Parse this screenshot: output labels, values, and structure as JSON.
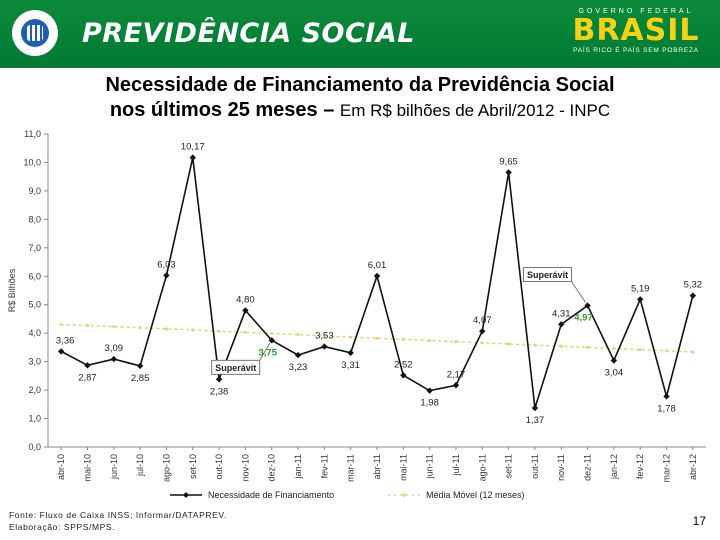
{
  "header": {
    "brand_title": "PREVIDÊNCIA SOCIAL",
    "gov_top": "GOVERNO FEDERAL",
    "gov_name": "BRASIL",
    "gov_slogan": "PAÍS RICO É PAÍS SEM POBREZA"
  },
  "title": {
    "line1": "Necessidade de Financiamento da Previdência Social",
    "line2_bold": "nos últimos 25 meses – ",
    "line2_rest": "Em R$ bilhões de Abril/2012 - INPC"
  },
  "footer": {
    "source": "Fonte: Fluxo de Caixa INSS; Informar/DATAPREV.",
    "prepared": "Elaboração: SPPS/MPS.",
    "page_number": "17"
  },
  "chart_data": {
    "type": "line",
    "title": "Necessidade de Financiamento da Previdência Social nos últimos 25 meses – Em R$ bilhões de Abril/2012 - INPC",
    "xlabel": "",
    "ylabel": "R$ Bilhões",
    "ylim": [
      0,
      11
    ],
    "ytick_labels": [
      "0,0",
      "1,0",
      "2,0",
      "3,0",
      "4,0",
      "5,0",
      "6,0",
      "7,0",
      "8,0",
      "9,0",
      "10,0",
      "11,0"
    ],
    "categories": [
      "abr-10",
      "mai-10",
      "jun-10",
      "jul-10",
      "ago-10",
      "set-10",
      "out-10",
      "nov-10",
      "dez-10",
      "jan-11",
      "fev-11",
      "mar-11",
      "abr-11",
      "mai-11",
      "jun-11",
      "jul-11",
      "ago-11",
      "set-11",
      "out-11",
      "nov-11",
      "dez-11",
      "jan-12",
      "fev-12",
      "mar-12",
      "abr-12"
    ],
    "series": [
      {
        "name": "Necessidade de Financiamento",
        "color": "#111111",
        "values": [
          3.36,
          2.87,
          3.09,
          2.85,
          6.03,
          10.17,
          2.38,
          4.8,
          3.75,
          3.23,
          3.53,
          3.31,
          6.01,
          2.52,
          1.98,
          2.17,
          4.07,
          9.65,
          1.37,
          4.31,
          4.97,
          3.04,
          5.19,
          1.78,
          5.32
        ],
        "labels": [
          "3,36",
          "2,87",
          "3,09",
          "2,85",
          "6,03",
          "10,17",
          "2,38",
          "4,80",
          "3,75",
          "3,23",
          "3,53",
          "3,31",
          "6,01",
          "2,52",
          "1,98",
          "2,17",
          "4,07",
          "9,65",
          "1,37",
          "4,31",
          "4,97",
          "3,04",
          "5,19",
          "1,78",
          "5,32"
        ]
      },
      {
        "name": "Média Móvel (12 meses)",
        "color": "#e6d37a",
        "values": [
          4.3,
          4.27,
          4.23,
          4.19,
          4.15,
          4.11,
          4.07,
          4.03,
          3.99,
          3.95,
          3.9,
          3.86,
          3.82,
          3.78,
          3.74,
          3.7,
          3.66,
          3.62,
          3.58,
          3.54,
          3.5,
          3.46,
          3.42,
          3.38,
          3.34
        ]
      }
    ],
    "highlight_color": "#2e9e2e",
    "annotations": [
      {
        "text": "Superávit",
        "category": "dez-10"
      },
      {
        "text": "Superávit",
        "category": "dez-11"
      }
    ],
    "legend_position": "bottom"
  }
}
